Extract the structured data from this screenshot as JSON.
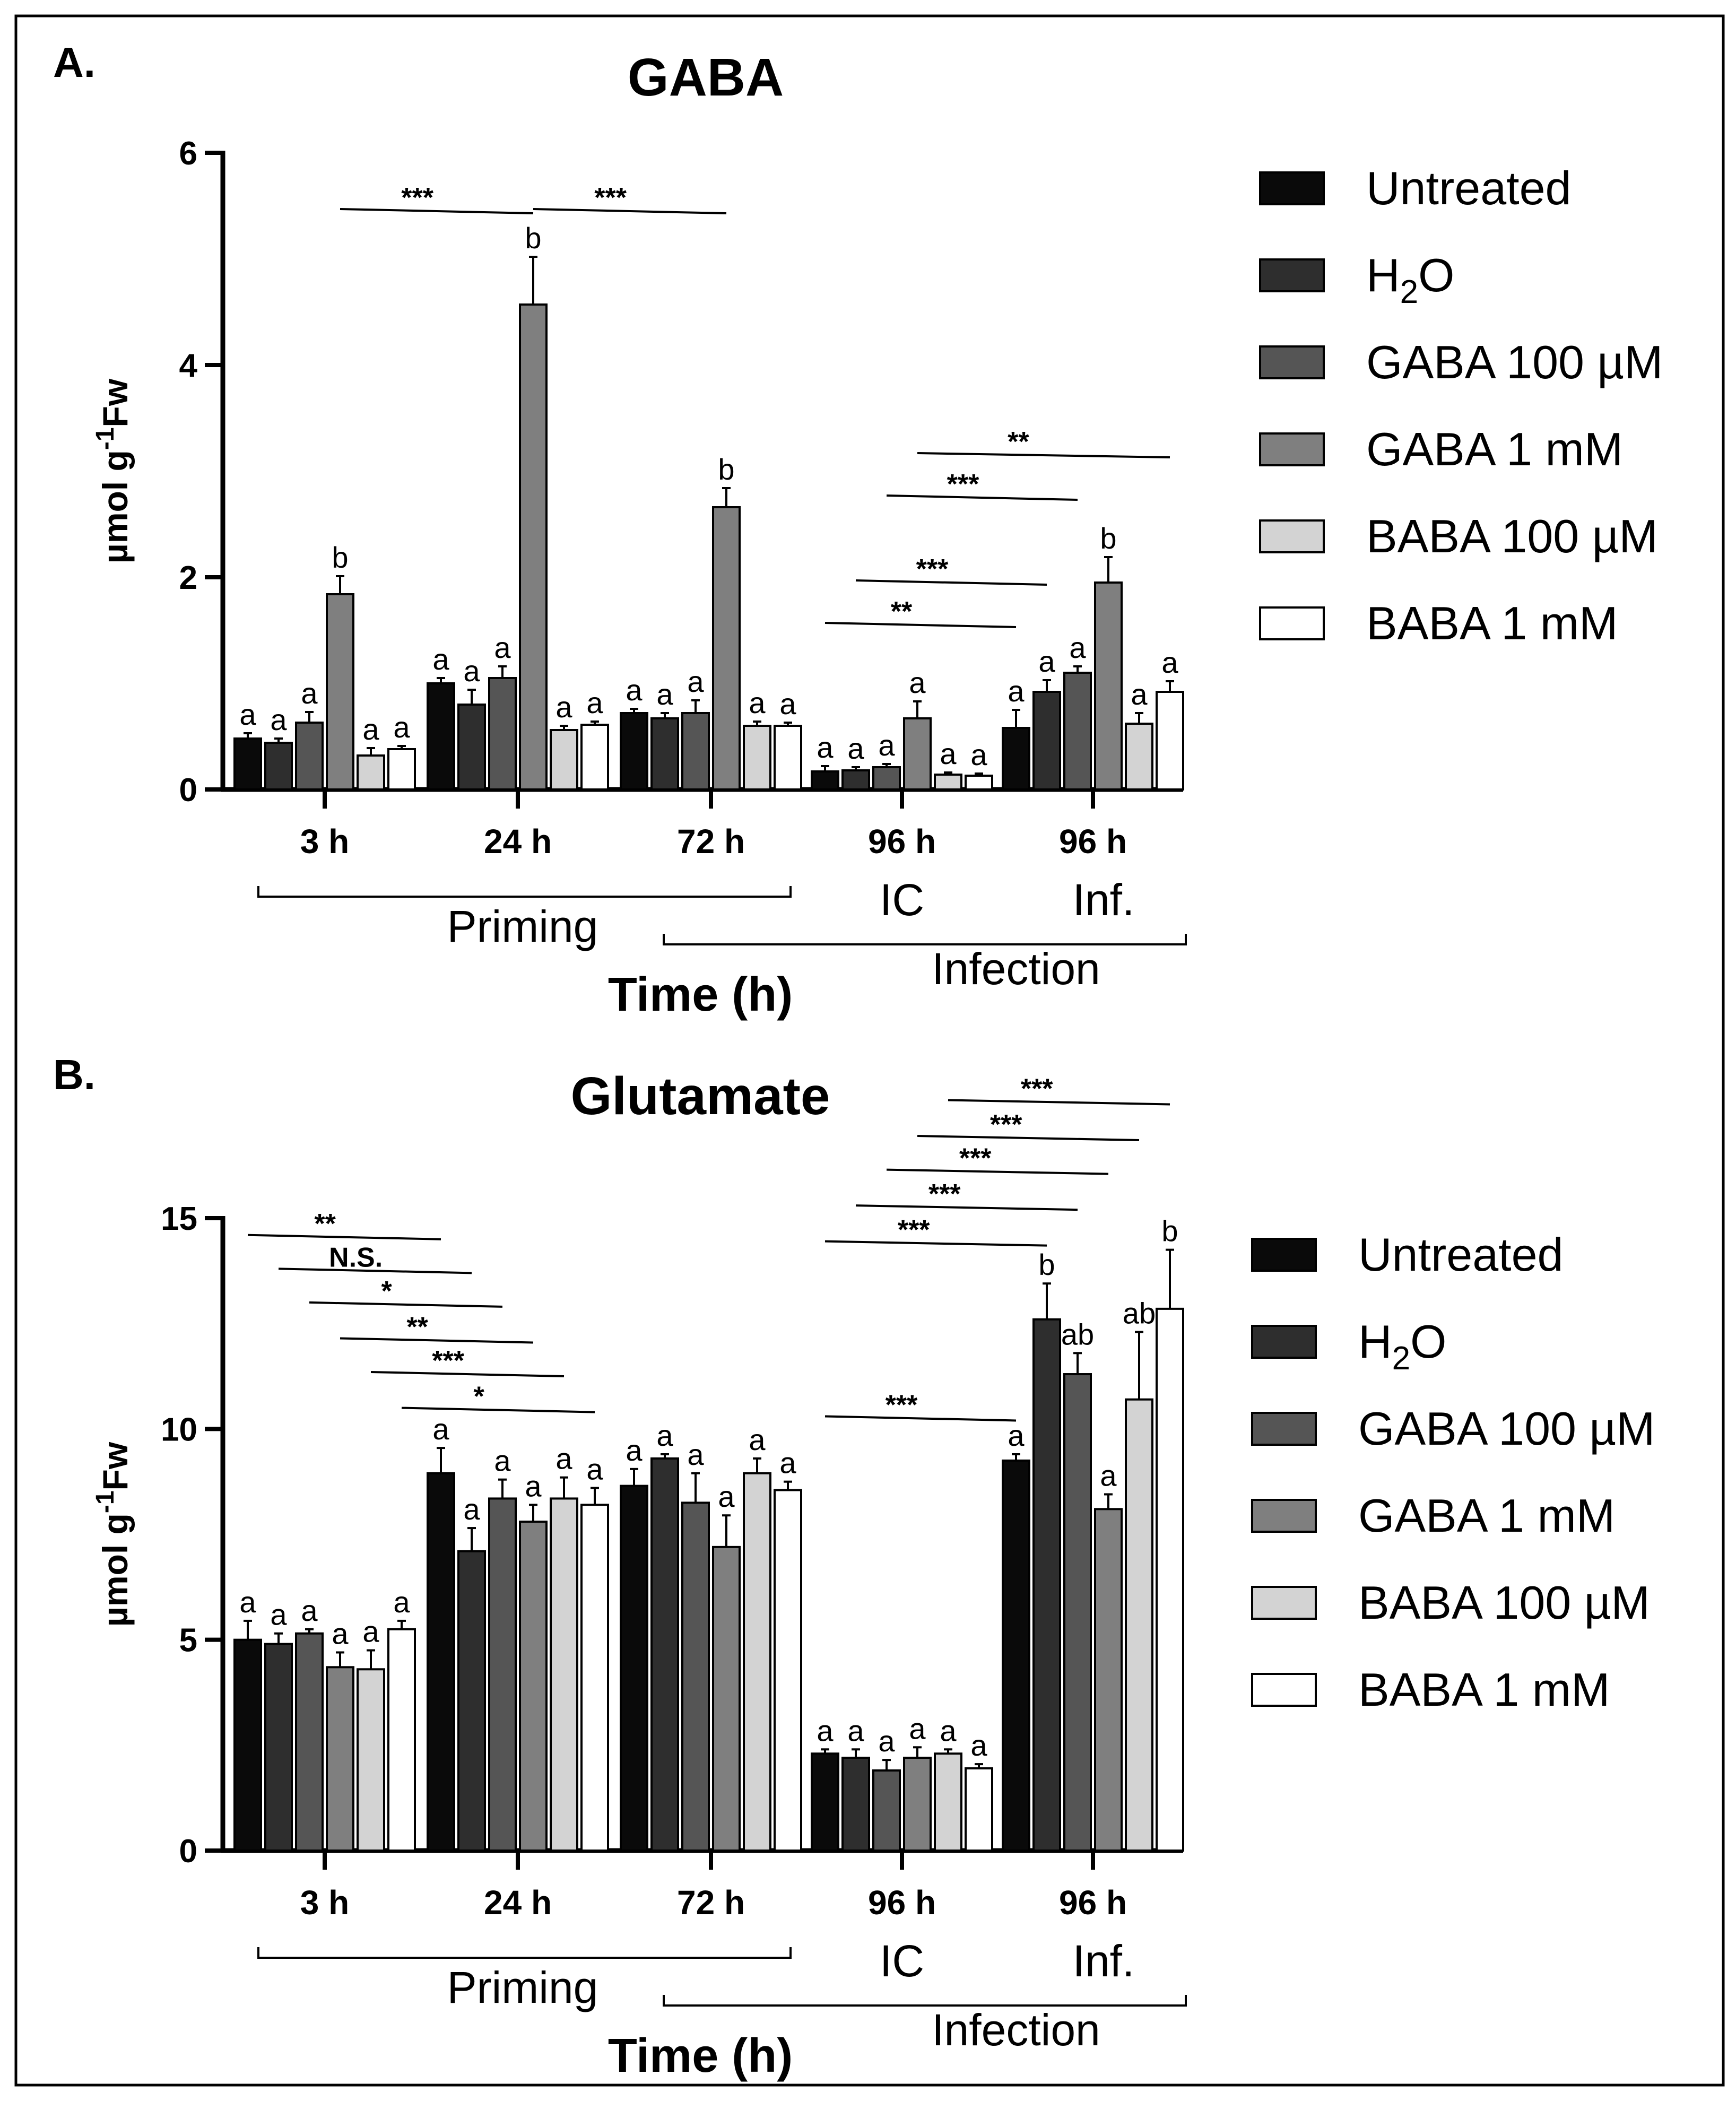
{
  "colors": {
    "Untreated": "#0a0a0a",
    "H2O": "#2e2e2e",
    "GABA 100 µM": "#555555",
    "GABA 1 mM": "#7f7f7f",
    "BABA 100 µM": "#d3d3d3",
    "BABA 1 mM": "#ffffff"
  },
  "legend_labels": [
    "Untreated",
    "H2O",
    "GABA 100 µM",
    "GABA 1 mM",
    "BABA 100 µM",
    "BABA 1 mM"
  ],
  "group_labels": {
    "priming": "Priming",
    "ic": "IC",
    "inf": "Inf.",
    "infection": "Infection"
  },
  "chart_data": [
    {
      "panel_label": "A.",
      "type": "bar",
      "title": "GABA",
      "xlabel": "Time (h)",
      "ylabel": "µmol g-1Fw",
      "ylim": [
        0,
        6
      ],
      "yticks": [
        "0",
        "2",
        "4",
        "6"
      ],
      "categories": [
        "3 h",
        "24 h",
        "72 h",
        "96 h",
        "96 h"
      ],
      "series": [
        {
          "name": "Untreated",
          "values": [
            0.48,
            1.0,
            0.72,
            0.17,
            0.58
          ],
          "errors": [
            0.05,
            0.05,
            0.04,
            0.05,
            0.17
          ],
          "letters": [
            "a",
            "a",
            "a",
            "a",
            "a"
          ]
        },
        {
          "name": "H2O",
          "values": [
            0.44,
            0.8,
            0.67,
            0.18,
            0.92
          ],
          "errors": [
            0.04,
            0.14,
            0.05,
            0.03,
            0.11
          ],
          "letters": [
            "a",
            "a",
            "a",
            "a",
            "a"
          ]
        },
        {
          "name": "GABA 100 µM",
          "values": [
            0.63,
            1.05,
            0.72,
            0.21,
            1.1
          ],
          "errors": [
            0.1,
            0.11,
            0.12,
            0.03,
            0.06
          ],
          "letters": [
            "a",
            "a",
            "a",
            "a",
            "a"
          ]
        },
        {
          "name": "GABA 1 mM",
          "values": [
            1.84,
            4.57,
            2.66,
            0.67,
            1.95
          ],
          "errors": [
            0.17,
            0.45,
            0.18,
            0.16,
            0.24
          ],
          "letters": [
            "b",
            "b",
            "b",
            "a",
            "b"
          ]
        },
        {
          "name": "BABA 100 µM",
          "values": [
            0.32,
            0.56,
            0.6,
            0.14,
            0.62
          ],
          "errors": [
            0.07,
            0.04,
            0.04,
            0.02,
            0.1
          ],
          "letters": [
            "a",
            "a",
            "a",
            "a",
            "a"
          ]
        },
        {
          "name": "BABA 1 mM",
          "values": [
            0.38,
            0.61,
            0.6,
            0.13,
            0.92
          ],
          "errors": [
            0.03,
            0.03,
            0.03,
            0.02,
            0.1
          ],
          "letters": [
            "a",
            "a",
            "a",
            "a",
            "a"
          ]
        }
      ],
      "significance": [
        {
          "text": "***",
          "from": [
            0,
            3
          ],
          "to": [
            1,
            3
          ],
          "level": 5.45
        },
        {
          "text": "***",
          "from": [
            1,
            3
          ],
          "to": [
            2,
            3
          ],
          "level": 5.45
        },
        {
          "text": "**",
          "from": [
            3,
            0
          ],
          "to": [
            4,
            0
          ],
          "level": 1.55
        },
        {
          "text": "***",
          "from": [
            3,
            1
          ],
          "to": [
            4,
            1
          ],
          "level": 1.95
        },
        {
          "text": "***",
          "from": [
            3,
            2
          ],
          "to": [
            4,
            2
          ],
          "level": 2.75
        },
        {
          "text": "**",
          "from": [
            3,
            3
          ],
          "to": [
            4,
            5
          ],
          "level": 3.15
        }
      ]
    },
    {
      "panel_label": "B.",
      "type": "bar",
      "title": "Glutamate",
      "xlabel": "Time (h)",
      "ylabel": "µmol g-1Fw",
      "ylim": [
        0,
        15
      ],
      "yticks": [
        "0",
        "5",
        "10",
        "15"
      ],
      "categories": [
        "3 h",
        "24 h",
        "72 h",
        "96 h",
        "96 h"
      ],
      "series": [
        {
          "name": "Untreated",
          "values": [
            5.0,
            8.95,
            8.65,
            2.3,
            9.25
          ],
          "errors": [
            0.45,
            0.6,
            0.4,
            0.1,
            0.15
          ],
          "letters": [
            "a",
            "a",
            "a",
            "a",
            "a"
          ]
        },
        {
          "name": "H2O",
          "values": [
            4.9,
            7.1,
            9.3,
            2.2,
            12.6
          ],
          "errors": [
            0.25,
            0.55,
            0.1,
            0.2,
            0.85
          ],
          "letters": [
            "a",
            "a",
            "a",
            "a",
            "b"
          ]
        },
        {
          "name": "GABA 100 µM",
          "values": [
            5.15,
            8.35,
            8.25,
            1.9,
            11.3
          ],
          "errors": [
            0.1,
            0.45,
            0.7,
            0.25,
            0.5
          ],
          "letters": [
            "a",
            "a",
            "a",
            "a",
            "ab"
          ]
        },
        {
          "name": "GABA 1 mM",
          "values": [
            4.35,
            7.8,
            7.2,
            2.2,
            8.1
          ],
          "errors": [
            0.35,
            0.4,
            0.75,
            0.25,
            0.35
          ],
          "letters": [
            "a",
            "a",
            "a",
            "a",
            "a"
          ]
        },
        {
          "name": "BABA 100 µM",
          "values": [
            4.3,
            8.35,
            8.95,
            2.3,
            10.7
          ],
          "errors": [
            0.45,
            0.5,
            0.35,
            0.1,
            1.6
          ],
          "letters": [
            "a",
            "a",
            "a",
            "a",
            "ab"
          ]
        },
        {
          "name": "BABA 1 mM",
          "values": [
            5.25,
            8.2,
            8.55,
            1.95,
            12.85
          ],
          "errors": [
            0.2,
            0.4,
            0.2,
            0.1,
            1.4
          ],
          "letters": [
            "a",
            "a",
            "a",
            "a",
            "b"
          ]
        }
      ],
      "significance": [
        {
          "text": "**",
          "from": [
            0,
            0
          ],
          "to": [
            1,
            0
          ],
          "level": 14.55
        },
        {
          "text": "N.S.",
          "from": [
            0,
            1
          ],
          "to": [
            1,
            1
          ],
          "level": 13.75
        },
        {
          "text": "*",
          "from": [
            0,
            2
          ],
          "to": [
            1,
            2
          ],
          "level": 12.95
        },
        {
          "text": "**",
          "from": [
            0,
            3
          ],
          "to": [
            1,
            3
          ],
          "level": 12.1
        },
        {
          "text": "***",
          "from": [
            0,
            4
          ],
          "to": [
            1,
            4
          ],
          "level": 11.3
        },
        {
          "text": "*",
          "from": [
            0,
            5
          ],
          "to": [
            1,
            5
          ],
          "level": 10.45
        },
        {
          "text": "***",
          "from": [
            3,
            0
          ],
          "to": [
            4,
            0
          ],
          "level": 10.25
        },
        {
          "text": "***",
          "from": [
            3,
            0
          ],
          "to": [
            4,
            1
          ],
          "level": 14.4
        },
        {
          "text": "***",
          "from": [
            3,
            1
          ],
          "to": [
            4,
            2
          ],
          "level": 15.25
        },
        {
          "text": "***",
          "from": [
            3,
            2
          ],
          "to": [
            4,
            3
          ],
          "level": 16.1
        },
        {
          "text": "***",
          "from": [
            3,
            3
          ],
          "to": [
            4,
            4
          ],
          "level": 16.9
        },
        {
          "text": "***",
          "from": [
            3,
            4
          ],
          "to": [
            4,
            5
          ],
          "level": 17.75
        }
      ]
    }
  ]
}
